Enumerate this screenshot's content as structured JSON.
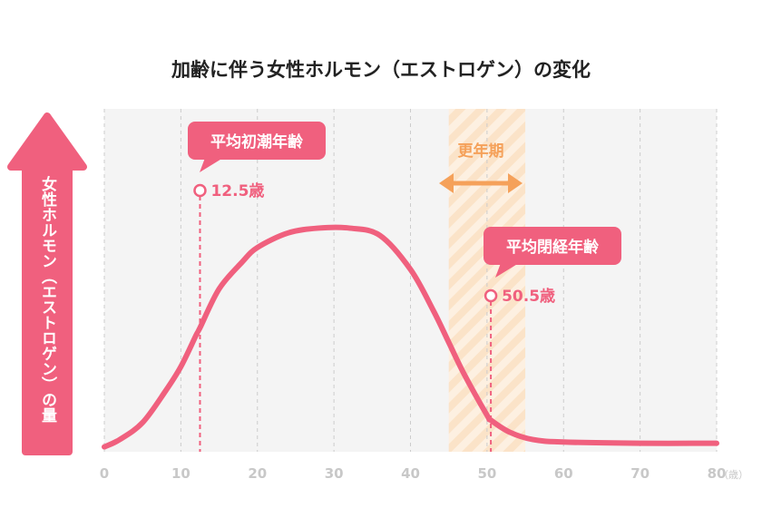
{
  "chart_data": {
    "type": "line",
    "title": "加齢に伴う女性ホルモン（エストロゲン）の変化",
    "ylabel": "女性ホルモン（エストロゲン）の量",
    "x_unit": "（歳）",
    "x_ticks": [
      0,
      10,
      20,
      30,
      40,
      50,
      60,
      70,
      80
    ],
    "xlim": [
      0,
      80
    ],
    "ylim": [
      0,
      1
    ],
    "grid": true,
    "series": [
      {
        "x": [
          0,
          2,
          5,
          8,
          10,
          12,
          12.5,
          15,
          18,
          20,
          24,
          28,
          32,
          36,
          40,
          43,
          45,
          47,
          50,
          50.5,
          53,
          56,
          60,
          70,
          80
        ],
        "values": [
          0.02,
          0.05,
          0.12,
          0.25,
          0.35,
          0.48,
          0.51,
          0.67,
          0.78,
          0.84,
          0.9,
          0.92,
          0.92,
          0.89,
          0.75,
          0.58,
          0.45,
          0.32,
          0.15,
          0.13,
          0.08,
          0.05,
          0.04,
          0.035,
          0.035
        ]
      }
    ],
    "menopause_band": {
      "label": "更年期",
      "x_range": [
        45,
        55
      ]
    },
    "annotations": [
      {
        "callout": "平均初潮年齢",
        "age": 12.5,
        "age_label": "12.5歳"
      },
      {
        "callout": "平均閉経年齢",
        "age": 50.5,
        "age_label": "50.5歳"
      }
    ]
  },
  "colors": {
    "curve": "#f0607e",
    "callout": "#f0607e",
    "band": "#fbe3c8",
    "band_stripe": "#fdf0e1",
    "band_text": "#f5a15a",
    "plot_bg": "#f4f4f4",
    "grid": "#cccccc",
    "tick": "#c8c8c8",
    "title": "#222222"
  }
}
